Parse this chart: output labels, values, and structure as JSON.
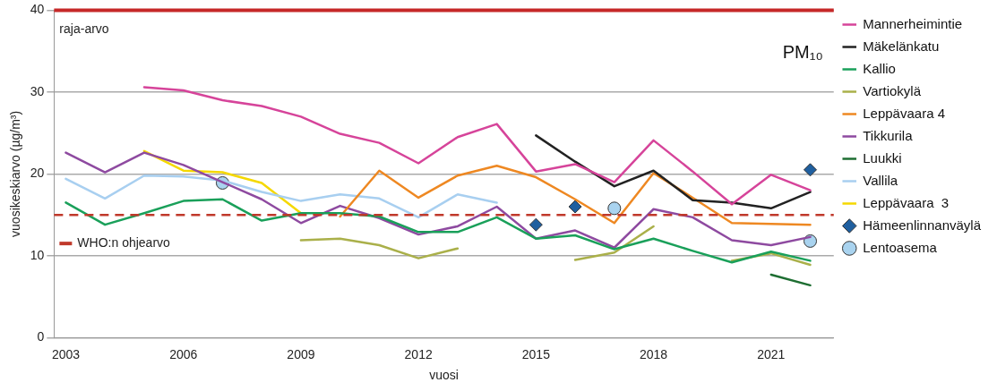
{
  "chart_data": {
    "type": "line",
    "title": "PM₁₀",
    "xlabel": "vuosi",
    "ylabel": "vuosikeskiarvo (µg/m³)",
    "xlim": [
      2002.7,
      2022.6
    ],
    "xticks": [
      2003,
      2006,
      2009,
      2012,
      2015,
      2018,
      2021
    ],
    "ylim": [
      0,
      40
    ],
    "yticks": [
      0,
      10,
      20,
      30,
      40
    ],
    "grid": "y",
    "legend": "right",
    "ref_lines": [
      {
        "axis": "y",
        "value": 40,
        "label": "raja-arvo",
        "color": "#c62828",
        "line_style": "solid"
      },
      {
        "axis": "y",
        "value": 15,
        "label": "WHO:n ohjearvo",
        "color": "#c0392b",
        "line_style": "dashed"
      }
    ],
    "series": [
      {
        "name": "Mannerheimintie",
        "color": "#d6449a",
        "x": [
          2005,
          2006,
          2007,
          2008,
          2009,
          2010,
          2011,
          2012,
          2013,
          2014,
          2015,
          2016,
          2017,
          2018,
          2019,
          2020,
          2021,
          2022
        ],
        "values": [
          30.6,
          30.2,
          29.0,
          28.3,
          27.0,
          24.9,
          23.8,
          21.3,
          24.5,
          26.1,
          20.3,
          21.2,
          19.0,
          24.1,
          20.3,
          16.3,
          19.9,
          18.0
        ]
      },
      {
        "name": "Mäkelänkatu",
        "color": "#222222",
        "x": [
          2015,
          2016,
          2017,
          2018,
          2019,
          2020,
          2021,
          2022
        ],
        "values": [
          24.7,
          21.5,
          18.5,
          20.4,
          16.8,
          16.5,
          15.8,
          17.8
        ]
      },
      {
        "name": "Kallio",
        "color": "#1aa05a",
        "x": [
          2003,
          2004,
          2005,
          2006,
          2007,
          2008,
          2009,
          2010,
          2011,
          2012,
          2013,
          2014,
          2015,
          2016,
          2017,
          2018,
          2019,
          2020,
          2021,
          2022
        ],
        "values": [
          16.5,
          13.8,
          15.2,
          16.7,
          16.9,
          14.3,
          15.2,
          15.2,
          14.8,
          12.9,
          12.9,
          14.7,
          12.1,
          12.5,
          10.8,
          12.1,
          10.6,
          9.2,
          10.5,
          9.4
        ]
      },
      {
        "name": "Vartiokylä",
        "color": "#aab04a",
        "x": [
          2009,
          2010,
          2011,
          2012,
          2013,
          2014,
          2016,
          2017,
          2018,
          2019,
          2020,
          2021,
          2022
        ],
        "values": [
          11.9,
          12.1,
          11.3,
          9.7,
          10.9,
          null,
          9.5,
          10.4,
          13.6,
          null,
          9.4,
          10.3,
          8.9
        ]
      },
      {
        "name": "Leppävaara 4",
        "color": "#ee8822",
        "x": [
          2010,
          2011,
          2012,
          2013,
          2014,
          2015,
          2016,
          2017,
          2018,
          2019,
          2020,
          2021,
          2022
        ],
        "values": [
          14.8,
          20.4,
          17.1,
          19.8,
          21.0,
          19.6,
          16.9,
          14.0,
          20.1,
          17.1,
          14.0,
          13.9,
          13.8
        ]
      },
      {
        "name": "Tikkurila",
        "color": "#8e4aa0",
        "x": [
          2003,
          2004,
          2005,
          2006,
          2007,
          2008,
          2009,
          2010,
          2011,
          2012,
          2013,
          2014,
          2015,
          2016,
          2017,
          2018,
          2019,
          2020,
          2021,
          2022
        ],
        "values": [
          22.6,
          20.2,
          22.6,
          21.1,
          19.0,
          16.9,
          14.0,
          16.1,
          14.6,
          12.6,
          13.6,
          16.0,
          12.1,
          13.1,
          11.0,
          15.7,
          14.7,
          11.9,
          11.3,
          12.3
        ]
      },
      {
        "name": "Luukki",
        "color": "#1e6e32",
        "x": [
          2021,
          2022
        ],
        "values": [
          7.7,
          6.4
        ]
      },
      {
        "name": "Vallila",
        "color": "#a8cff0",
        "x": [
          2003,
          2004,
          2005,
          2006,
          2007,
          2008,
          2009,
          2010,
          2011,
          2012,
          2013,
          2014
        ],
        "values": [
          19.4,
          17.0,
          19.8,
          19.7,
          19.2,
          17.8,
          16.7,
          17.5,
          17.0,
          14.7,
          17.5,
          16.5
        ]
      },
      {
        "name": "Leppävaara  3",
        "color": "#f5d800",
        "x": [
          2005,
          2006,
          2007,
          2008,
          2009
        ],
        "values": [
          22.8,
          20.4,
          20.2,
          18.9,
          15.2
        ]
      },
      {
        "name": "Hämeenlinnanväylä",
        "type": "scatter",
        "marker": "diamond",
        "color": "#1f5f9f",
        "x": [
          2015,
          2016,
          2022
        ],
        "values": [
          13.8,
          16.0,
          20.5
        ]
      },
      {
        "name": "Lentoasema",
        "type": "scatter",
        "marker": "circle",
        "color": "#a9d3ef",
        "x": [
          2007,
          2017,
          2022
        ],
        "values": [
          18.9,
          15.8,
          11.8
        ]
      }
    ]
  }
}
